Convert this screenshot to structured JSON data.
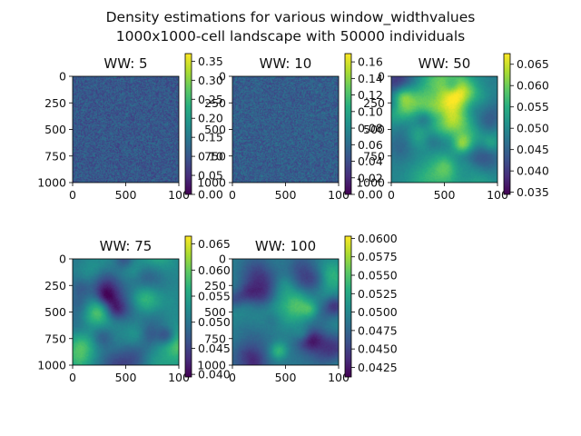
{
  "figure": {
    "title_line1": "Density estimations for various window_widthvalues",
    "title_line2": "1000x1000-cell landscape with 50000 individuals"
  },
  "chart_data": [
    {
      "type": "heatmap",
      "title": "WW: 5",
      "xlim": [
        0,
        1000
      ],
      "ylim": [
        1000,
        0
      ],
      "xticks": [
        "0",
        "500",
        "100"
      ],
      "yticks": [
        "0",
        "250",
        "500",
        "750",
        "1000"
      ],
      "colormap": "viridis",
      "colorbar_range": [
        0,
        0.37
      ],
      "colorbar_ticks": [
        "0.00",
        "0.05",
        "0.10",
        "0.15",
        "0.20",
        "0.25",
        "0.30",
        "0.35"
      ],
      "texture": "fine",
      "mean_level": 0.28
    },
    {
      "type": "heatmap",
      "title": "WW: 10",
      "xlim": [
        0,
        1000
      ],
      "ylim": [
        1000,
        0
      ],
      "xticks": [
        "0",
        "500",
        "100"
      ],
      "yticks": [
        "0",
        "250",
        "500",
        "750",
        "1000"
      ],
      "colormap": "viridis",
      "colorbar_range": [
        0,
        0.17
      ],
      "colorbar_ticks": [
        "0.00",
        "0.02",
        "0.04",
        "0.06",
        "0.08",
        "0.10",
        "0.12",
        "0.14",
        "0.16"
      ],
      "texture": "fine",
      "mean_level": 0.3
    },
    {
      "type": "heatmap",
      "title": "WW: 50",
      "xlim": [
        0,
        1000
      ],
      "ylim": [
        1000,
        0
      ],
      "xticks": [
        "0",
        "500",
        "100"
      ],
      "yticks": [
        "0",
        "250",
        "500",
        "750",
        "1000"
      ],
      "colormap": "viridis",
      "colorbar_range": [
        0.0345,
        0.0675
      ],
      "colorbar_ticks": [
        "0.035",
        "0.040",
        "0.045",
        "0.050",
        "0.055",
        "0.060",
        "0.065"
      ],
      "texture": "blobs",
      "mean_level": 0.45
    },
    {
      "type": "heatmap",
      "title": "WW: 75",
      "xlim": [
        0,
        1000
      ],
      "ylim": [
        1000,
        0
      ],
      "xticks": [
        "0",
        "500",
        "100"
      ],
      "yticks": [
        "0",
        "250",
        "500",
        "750",
        "1000"
      ],
      "colormap": "viridis",
      "colorbar_range": [
        0.0395,
        0.0665
      ],
      "colorbar_ticks": [
        "0.040",
        "0.045",
        "0.050",
        "0.055",
        "0.060",
        "0.065"
      ],
      "texture": "blobs",
      "mean_level": 0.45
    },
    {
      "type": "heatmap",
      "title": "WW: 100",
      "xlim": [
        0,
        1000
      ],
      "ylim": [
        1000,
        0
      ],
      "xticks": [
        "0",
        "500",
        "100"
      ],
      "yticks": [
        "0",
        "250",
        "500",
        "750",
        "1000"
      ],
      "colormap": "viridis",
      "colorbar_range": [
        0.0412,
        0.0603
      ],
      "colorbar_ticks": [
        "0.0425",
        "0.0450",
        "0.0475",
        "0.0500",
        "0.0525",
        "0.0550",
        "0.0575",
        "0.0600"
      ],
      "texture": "blobs",
      "mean_level": 0.45
    }
  ]
}
